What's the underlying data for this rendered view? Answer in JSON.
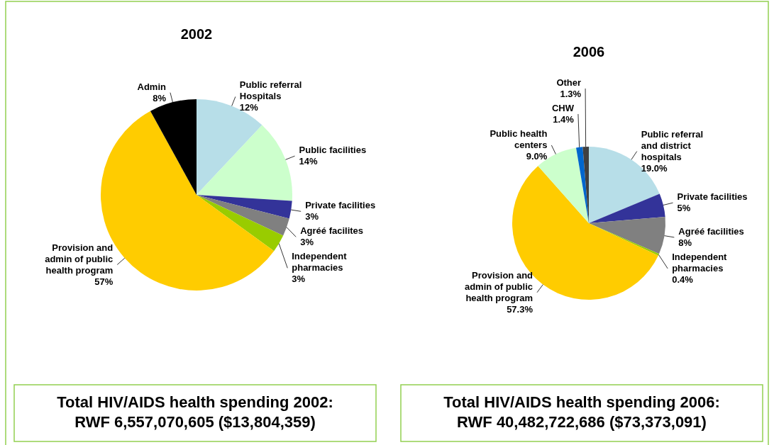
{
  "chart_data": [
    {
      "type": "pie",
      "title": "2002",
      "categories": [
        "Public referral Hospitals",
        "Public facilities",
        "Private facilities",
        "Agréé facilites",
        "Independent pharmacies",
        "Provision and admin of public health program",
        "Admin"
      ],
      "values": [
        12,
        14,
        3,
        3,
        3,
        57,
        8
      ],
      "value_labels": [
        "12%",
        "14%",
        "3%",
        "3%",
        "3%",
        "57%",
        "8%"
      ],
      "colors": [
        "#b7dee8",
        "#ccffcc",
        "#333399",
        "#808080",
        "#99cc00",
        "#ffcc00",
        "#000000"
      ],
      "annotations": [
        "Total HIV/AIDS health spending 2002: RWF 6,557,070,605 ($13,804,359)"
      ]
    },
    {
      "type": "pie",
      "title": "2006",
      "categories": [
        "Public referral and district hospitals",
        "Private facilities",
        "Agréé facilities",
        "Independent pharmacies",
        "Provision and admin of public health program",
        "Public health centers",
        "CHW",
        "Other"
      ],
      "values": [
        19.0,
        5,
        8,
        0.4,
        57.3,
        9.0,
        1.4,
        1.3
      ],
      "value_labels": [
        "19.0%",
        "5%",
        "8%",
        "0.4%",
        "57.3%",
        "9.0%",
        "1.4%",
        "1.3%"
      ],
      "colors": [
        "#b7dee8",
        "#333399",
        "#808080",
        "#99cc00",
        "#ffcc00",
        "#ccffcc",
        "#0066cc",
        "#404040"
      ],
      "annotations": [
        "Total HIV/AIDS health spending 2006: RWF 40,482,722,686 ($73,373,091)"
      ]
    }
  ]
}
